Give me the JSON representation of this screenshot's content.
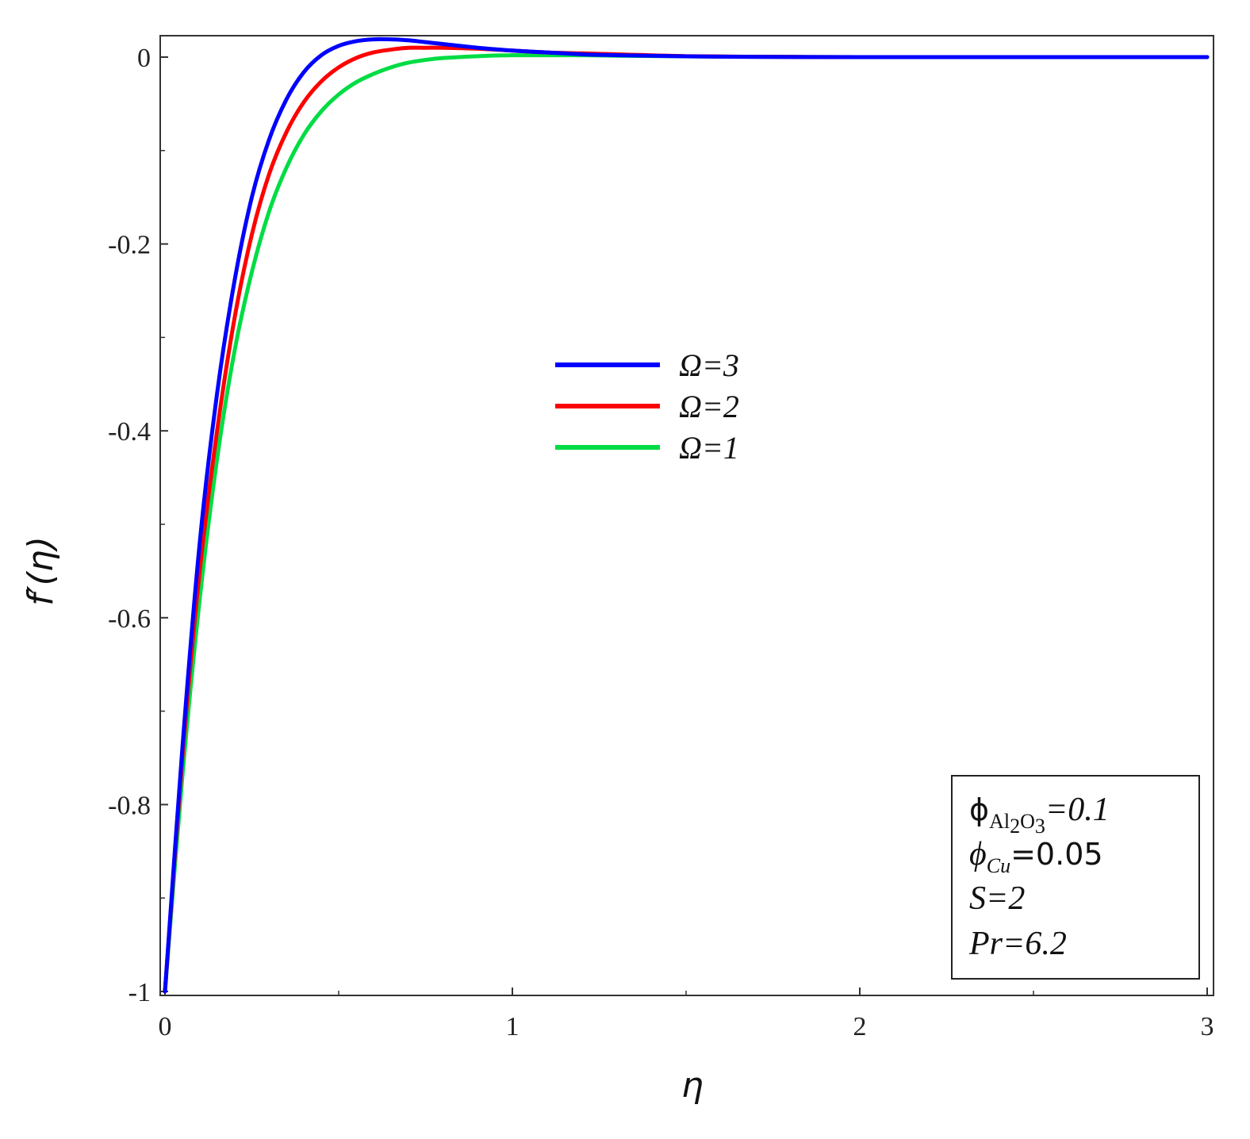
{
  "chart_data": {
    "type": "line",
    "xlabel": "η",
    "ylabel": "f′(η)",
    "xlim": [
      0,
      3
    ],
    "ylim": [
      -1,
      0.02
    ],
    "x_ticks": [
      0,
      1,
      2,
      3
    ],
    "x_tick_labels": [
      "0",
      "1",
      "2",
      "3"
    ],
    "y_ticks": [
      0,
      -0.2,
      -0.4,
      -0.6,
      -0.8,
      -1
    ],
    "y_tick_labels": [
      "0",
      "-0.2",
      "-0.4",
      "-0.6",
      "-0.8",
      "-1"
    ],
    "grid": false,
    "legend_position": "center",
    "series": [
      {
        "name": "Ω=3",
        "color": "#0000ff",
        "x": [
          0,
          0.05,
          0.1,
          0.15,
          0.2,
          0.25,
          0.3,
          0.35,
          0.4,
          0.45,
          0.5,
          0.55,
          0.6,
          0.65,
          0.7,
          0.75,
          0.8,
          0.9,
          1.0,
          1.1,
          1.2,
          1.3,
          1.5,
          1.75,
          2.0,
          2.5,
          3.0
        ],
        "y": [
          -1.0,
          -0.74,
          -0.52,
          -0.36,
          -0.24,
          -0.15,
          -0.088,
          -0.045,
          -0.016,
          0.002,
          0.012,
          0.017,
          0.019,
          0.019,
          0.018,
          0.016,
          0.014,
          0.01,
          0.007,
          0.005,
          0.003,
          0.002,
          0.0008,
          0.0002,
          0.0,
          0.0,
          0.0
        ]
      },
      {
        "name": "Ω=2",
        "color": "#ff0000",
        "x": [
          0,
          0.05,
          0.1,
          0.15,
          0.2,
          0.25,
          0.3,
          0.35,
          0.4,
          0.45,
          0.5,
          0.55,
          0.6,
          0.65,
          0.7,
          0.75,
          0.8,
          0.9,
          1.0,
          1.1,
          1.2,
          1.3,
          1.5,
          1.75,
          2.0,
          2.5,
          3.0
        ],
        "y": [
          -1.0,
          -0.75,
          -0.55,
          -0.4,
          -0.28,
          -0.19,
          -0.125,
          -0.08,
          -0.048,
          -0.026,
          -0.011,
          -0.001,
          0.005,
          0.008,
          0.01,
          0.01,
          0.01,
          0.009,
          0.007,
          0.005,
          0.004,
          0.003,
          0.001,
          0.0003,
          0.0,
          0.0,
          0.0
        ]
      },
      {
        "name": "Ω=1",
        "color": "#00dd44",
        "x": [
          0,
          0.05,
          0.1,
          0.15,
          0.2,
          0.25,
          0.3,
          0.35,
          0.4,
          0.45,
          0.5,
          0.55,
          0.6,
          0.65,
          0.7,
          0.75,
          0.8,
          0.9,
          1.0,
          1.1,
          1.2,
          1.3,
          1.5,
          1.75,
          2.0,
          2.5,
          3.0
        ],
        "y": [
          -1.0,
          -0.77,
          -0.58,
          -0.43,
          -0.315,
          -0.23,
          -0.165,
          -0.118,
          -0.083,
          -0.058,
          -0.04,
          -0.027,
          -0.018,
          -0.011,
          -0.006,
          -0.003,
          -0.001,
          0.001,
          0.002,
          0.002,
          0.002,
          0.0015,
          0.0008,
          0.0003,
          0.0,
          0.0,
          0.0
        ]
      }
    ],
    "parameters": {
      "phi_al2o3": {
        "symbol": "ϕ",
        "subscript_main": "Al",
        "subscript_2": "2",
        "subscript_o": "O",
        "subscript_3": "3",
        "value_text": "=0.1"
      },
      "phi_cu": {
        "symbol": "ϕ",
        "subscript": "Cu",
        "value_text": "=0.05"
      },
      "s": "S=2",
      "pr": "Pr=6.2"
    }
  },
  "colors": {
    "axis": "#333333",
    "frame": "#333333"
  }
}
